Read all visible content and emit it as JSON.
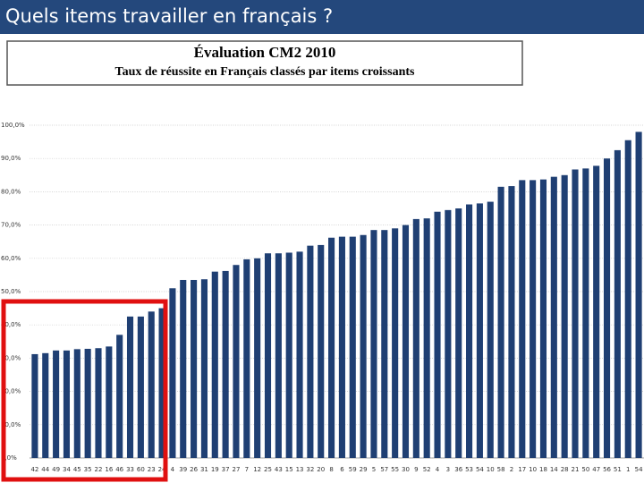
{
  "heading": "Quels items travailler en français ?",
  "chart_data": {
    "type": "bar",
    "title": "Évaluation CM2 2010",
    "subtitle": "Taux de réussite en Français classés par items croissants",
    "categories": [
      "42",
      "44",
      "49",
      "34",
      "45",
      "35",
      "22",
      "16",
      "46",
      "33",
      "60",
      "23",
      "24",
      "4",
      "39",
      "26",
      "31",
      "19",
      "37",
      "27",
      "7",
      "12",
      "25",
      "43",
      "15",
      "13",
      "32",
      "20",
      "8",
      "6",
      "59",
      "29",
      "5",
      "57",
      "55",
      "30",
      "9",
      "52",
      "4",
      "3",
      "36",
      "53",
      "54",
      "10",
      "58",
      "2",
      "17",
      "10",
      "18",
      "14",
      "28",
      "21",
      "50",
      "47",
      "56",
      "51",
      "1",
      "54"
    ],
    "values": [
      31.2,
      31.5,
      32.3,
      32.3,
      32.7,
      32.8,
      33,
      33.5,
      37,
      42.5,
      42.5,
      44,
      45,
      51,
      53.5,
      53.5,
      53.7,
      56,
      56.2,
      58,
      59.7,
      60,
      61.5,
      61.5,
      61.7,
      62,
      63.8,
      64,
      66.2,
      66.5,
      66.5,
      67,
      68.5,
      68.5,
      69,
      70,
      71.8,
      72,
      74,
      74.5,
      75,
      76.2,
      76.5,
      77,
      81.5,
      81.7,
      83.5,
      83.5,
      83.7,
      84.5,
      85,
      86.7,
      87,
      87.8,
      90,
      92.5,
      95.5,
      98
    ],
    "color": "#1f3f73",
    "ylim": [
      0,
      100
    ],
    "yticks": [
      {
        "value": 0,
        "label": "0,0%"
      },
      {
        "value": 10,
        "label": "10,0%"
      },
      {
        "value": 20,
        "label": "20,0%"
      },
      {
        "value": 30,
        "label": "30,0%"
      },
      {
        "value": 40,
        "label": "40,0%"
      },
      {
        "value": 50,
        "label": "50,0%"
      },
      {
        "value": 60,
        "label": "60,0%"
      },
      {
        "value": 70,
        "label": "70,0%"
      },
      {
        "value": 80,
        "label": "80,0%"
      },
      {
        "value": 90,
        "label": "90,0%"
      },
      {
        "value": 100,
        "label": "100,0%"
      }
    ],
    "grid": true
  }
}
